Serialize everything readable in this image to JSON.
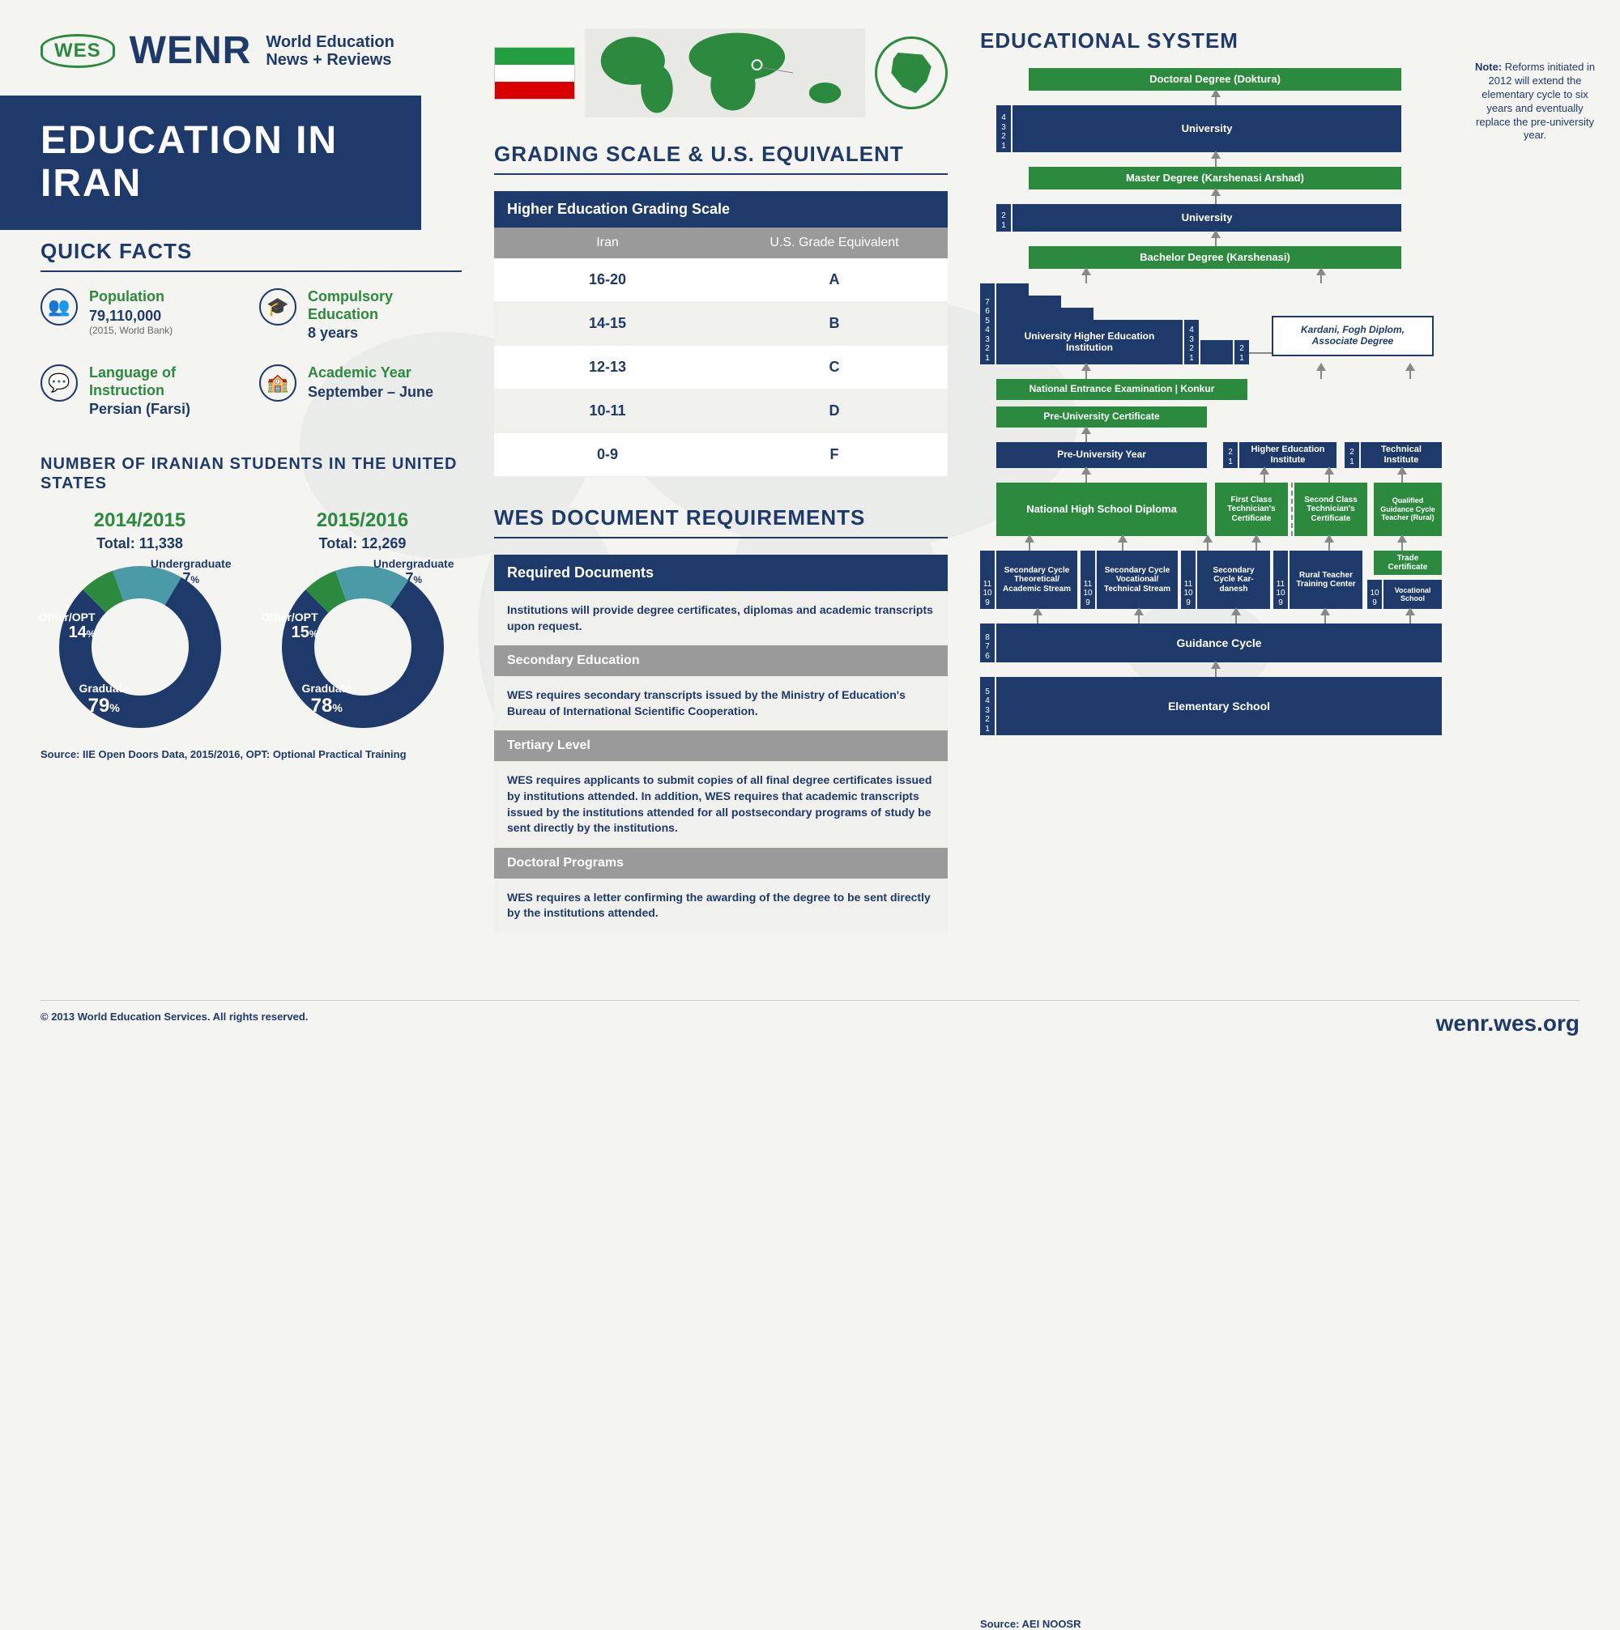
{
  "colors": {
    "navy": "#1e3a6b",
    "green": "#2b8a3e",
    "teal": "#4a9aa8",
    "gray": "#9a9a9a",
    "bg": "#f4f4f0",
    "lightbg": "#f0f0ec"
  },
  "header": {
    "badge": "WES",
    "logo": "WENR",
    "sub1": "World Education",
    "sub2": "News + Reviews"
  },
  "title": "EDUCATION IN IRAN",
  "quick_facts": {
    "title": "QUICK FACTS",
    "items": [
      {
        "icon": "👥",
        "label": "Population",
        "value": "79,110,000",
        "sub": "(2015, World Bank)"
      },
      {
        "icon": "🎓",
        "label": "Compulsory Education",
        "value": "8 years",
        "sub": ""
      },
      {
        "icon": "💬",
        "label": "Language of Instruction",
        "value": "Persian (Farsi)",
        "sub": ""
      },
      {
        "icon": "🏫",
        "label": "Academic Year",
        "value": "September – June",
        "sub": ""
      }
    ]
  },
  "iran_flag": {
    "top": "#239f40",
    "mid": "#ffffff",
    "bot": "#da0000"
  },
  "students": {
    "title": "NUMBER OF IRANIAN STUDENTS IN THE UNITED STATES",
    "source": "Source: IIE Open Doors Data, 2015/2016, OPT: Optional Practical Training",
    "donuts": [
      {
        "year": "2014/2015",
        "total": "Total: 11,338",
        "segments": [
          {
            "label": "Graduate",
            "pct": 79,
            "color": "#1e3a6b"
          },
          {
            "label": "Other/OPT",
            "pct": 14,
            "color": "#4a9aa8"
          },
          {
            "label": "Undergraduate",
            "pct": 7,
            "color": "#2b8a3e"
          }
        ]
      },
      {
        "year": "2015/2016",
        "total": "Total: 12,269",
        "segments": [
          {
            "label": "Graduate",
            "pct": 78,
            "color": "#1e3a6b"
          },
          {
            "label": "Other/OPT",
            "pct": 15,
            "color": "#4a9aa8"
          },
          {
            "label": "Undergraduate",
            "pct": 7,
            "color": "#2b8a3e"
          }
        ]
      }
    ]
  },
  "grading": {
    "title": "GRADING SCALE & U.S. EQUIVALENT",
    "header": "Higher Education Grading Scale",
    "col1": "Iran",
    "col2": "U.S. Grade Equivalent",
    "rows": [
      {
        "iran": "16-20",
        "us": "A"
      },
      {
        "iran": "14-15",
        "us": "B"
      },
      {
        "iran": "12-13",
        "us": "C"
      },
      {
        "iran": "10-11",
        "us": "D"
      },
      {
        "iran": "0-9",
        "us": "F"
      }
    ]
  },
  "docs": {
    "title": "WES DOCUMENT REQUIREMENTS",
    "sections": [
      {
        "head": "Required Documents",
        "body": "Institutions will provide degree certificates, diplomas and academic transcripts upon request.",
        "is_main": true
      },
      {
        "head": "Secondary Education",
        "body": "WES requires secondary transcripts issued by the Ministry of Education's Bureau of International Scientific Cooperation."
      },
      {
        "head": "Tertiary Level",
        "body": "WES requires applicants to submit copies of all final degree certificates issued by institutions attended. In addition, WES requires that academic transcripts issued by the institutions attended for all postsecondary programs of study be sent directly by the institutions."
      },
      {
        "head": "Doctoral Programs",
        "body": "WES requires a letter confirming the awarding of the degree to be sent directly by the institutions attended."
      }
    ]
  },
  "edu_system": {
    "title": "EDUCATIONAL SYSTEM",
    "note": "Reforms initiated in 2012 will extend the elementary cycle to six years and eventually replace the pre-university year.",
    "note_label": "Note:",
    "source": "Source: AEI NOOSR",
    "boxes": {
      "doctoral": "Doctoral Degree (Doktura)",
      "univ1": "University",
      "master": "Master Degree (Karshenasi Arshad)",
      "univ2": "University",
      "bachelor": "Bachelor Degree (Karshenasi)",
      "uni_inst": "University Higher Education Institution",
      "kardani": "Kardani, Fogh Diplom, Associate Degree",
      "konkur": "National Entrance Examination | Konkur",
      "preuni_cert": "Pre-University Certificate",
      "preuni_year": "Pre-University Year",
      "higher_ed_inst": "Higher Education Institute",
      "tech_inst": "Technical Institute",
      "hs_diploma": "National High School Diploma",
      "first_tech": "First Class Technician's Certificate",
      "second_tech": "Second Class Technician's Certificate",
      "qual_teacher": "Qualified Guidance Cycle Teacher (Rural)",
      "sec_theoretical": "Secondary Cycle Theoretical/ Academic Stream",
      "sec_vocational": "Secondary Cycle Vocational/ Technical Stream",
      "sec_kardanesh": "Secondary Cycle Kar-danesh",
      "rural_teacher": "Rural Teacher Training Center",
      "trade_cert": "Trade Certificate",
      "voc_school": "Vocational School",
      "guidance": "Guidance Cycle",
      "elementary": "Elementary School"
    }
  },
  "footer": {
    "copyright": "© 2013 World Education Services. All rights reserved.",
    "url": "wenr.wes.org"
  }
}
